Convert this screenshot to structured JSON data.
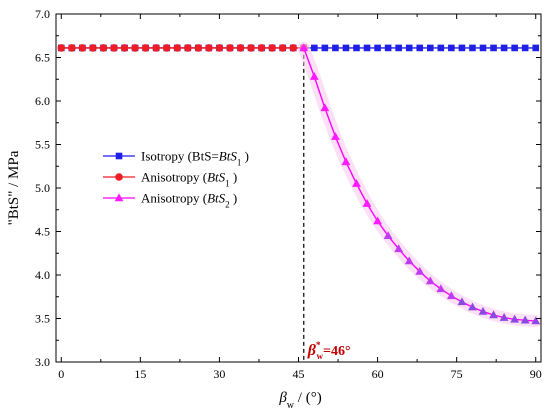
{
  "colors": {
    "isotropy": "#1f1fe6",
    "anisotropy1": "#ee1c24",
    "anisotropy2_line": "#ff00ff",
    "anisotropy2_marker": "#9a3ce6",
    "annotation": "#c00000"
  },
  "chart_data": {
    "type": "line",
    "xlabel_symbol": "β",
    "xlabel_sub": "w",
    "xlabel_unit": " / (°)",
    "ylabel": "\"BtS\" / MPa",
    "xlim": [
      -1,
      91
    ],
    "ylim": [
      3.0,
      7.0
    ],
    "xticks": [
      0,
      15,
      30,
      45,
      60,
      75,
      90
    ],
    "yticks": [
      3.0,
      3.5,
      4.0,
      4.5,
      5.0,
      5.5,
      6.0,
      6.5,
      7.0
    ],
    "grid": false,
    "legend_position": "middle-left",
    "vline": {
      "x": 46,
      "style": "dashed"
    },
    "annotation": {
      "symbol": "β",
      "sup": "*",
      "sub": "w",
      "text": "=46°",
      "x": 46
    },
    "series": [
      {
        "name_parts": [
          "Isotropy (BtS=",
          "BtS",
          "1",
          " )"
        ],
        "marker": "square",
        "x": [
          0,
          2,
          4,
          6,
          8,
          10,
          12,
          14,
          16,
          18,
          20,
          22,
          24,
          26,
          28,
          30,
          32,
          34,
          36,
          38,
          40,
          42,
          44,
          46,
          48,
          50,
          52,
          54,
          56,
          58,
          60,
          62,
          64,
          66,
          68,
          70,
          72,
          74,
          76,
          78,
          80,
          82,
          84,
          86,
          88,
          90
        ],
        "y": [
          6.61,
          6.61,
          6.61,
          6.61,
          6.61,
          6.61,
          6.61,
          6.61,
          6.61,
          6.61,
          6.61,
          6.61,
          6.61,
          6.61,
          6.61,
          6.61,
          6.61,
          6.61,
          6.61,
          6.61,
          6.61,
          6.61,
          6.61,
          6.61,
          6.61,
          6.61,
          6.61,
          6.61,
          6.61,
          6.61,
          6.61,
          6.61,
          6.61,
          6.61,
          6.61,
          6.61,
          6.61,
          6.61,
          6.61,
          6.61,
          6.61,
          6.61,
          6.61,
          6.61,
          6.61,
          6.61
        ]
      },
      {
        "name_parts": [
          "Anisotropy (",
          "BtS",
          "1",
          " )"
        ],
        "marker": "circle",
        "x": [
          0,
          2,
          4,
          6,
          8,
          10,
          12,
          14,
          16,
          18,
          20,
          22,
          24,
          26,
          28,
          30,
          32,
          34,
          36,
          38,
          40,
          42,
          44,
          46
        ],
        "y": [
          6.61,
          6.61,
          6.61,
          6.61,
          6.61,
          6.61,
          6.61,
          6.61,
          6.61,
          6.61,
          6.61,
          6.61,
          6.61,
          6.61,
          6.61,
          6.61,
          6.61,
          6.61,
          6.61,
          6.61,
          6.61,
          6.61,
          6.61,
          6.61
        ]
      },
      {
        "name_parts": [
          "Anisotropy (",
          "BtS",
          "2",
          " )"
        ],
        "marker": "triangle",
        "x": [
          46,
          48,
          50,
          52,
          54,
          56,
          58,
          60,
          62,
          64,
          66,
          68,
          70,
          72,
          74,
          76,
          78,
          80,
          82,
          84,
          86,
          88,
          90
        ],
        "y": [
          6.61,
          6.28,
          5.92,
          5.59,
          5.3,
          5.05,
          4.82,
          4.62,
          4.45,
          4.3,
          4.16,
          4.04,
          3.93,
          3.84,
          3.76,
          3.69,
          3.63,
          3.58,
          3.54,
          3.51,
          3.49,
          3.48,
          3.47
        ]
      }
    ]
  }
}
